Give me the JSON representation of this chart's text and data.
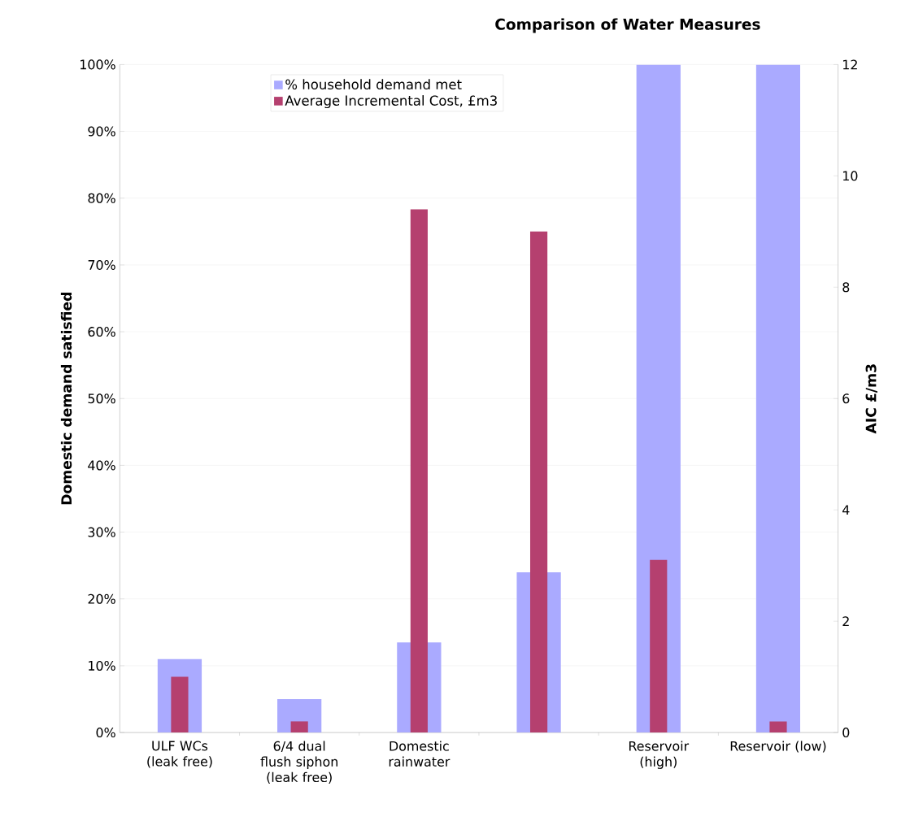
{
  "chart_data": {
    "type": "bar",
    "title": "Comparison of Water Measures",
    "categories": [
      "ULF WCs (leak free)",
      "6/4 dual flush siphon (leak free)",
      "Domestic rainwater",
      null,
      "Reservoir (high)",
      "Reservoir (low)"
    ],
    "series": [
      {
        "name": "% household demand met",
        "color": "#aaaaff",
        "values": [
          11,
          5,
          13.5,
          24,
          100,
          100
        ]
      },
      {
        "name": "Average Incremental Cost, £m3",
        "color": "#b5406f",
        "axis": "y2",
        "values": [
          1.0,
          0.2,
          9.4,
          9.0,
          3.1,
          0.2
        ]
      }
    ],
    "ylabel": "Domestic demand satisfied",
    "y2label": "AIC £/m3",
    "ylim": [
      0,
      100
    ],
    "yticks": [
      {
        "value": 0,
        "label": "0%"
      },
      {
        "value": 10,
        "label": "10%"
      },
      {
        "value": 20,
        "label": "20%"
      },
      {
        "value": 30,
        "label": "30%"
      },
      {
        "value": 40,
        "label": "40%"
      },
      {
        "value": 50,
        "label": "50%"
      },
      {
        "value": 60,
        "label": "60%"
      },
      {
        "value": 70,
        "label": "70%"
      },
      {
        "value": 80,
        "label": "80%"
      },
      {
        "value": 90,
        "label": "90%"
      },
      {
        "value": 100,
        "label": "100%"
      }
    ],
    "y2lim": [
      0,
      12
    ],
    "y2ticks": [
      0,
      2,
      4,
      6,
      8,
      10,
      12
    ],
    "grid": "y",
    "legend": "top"
  }
}
